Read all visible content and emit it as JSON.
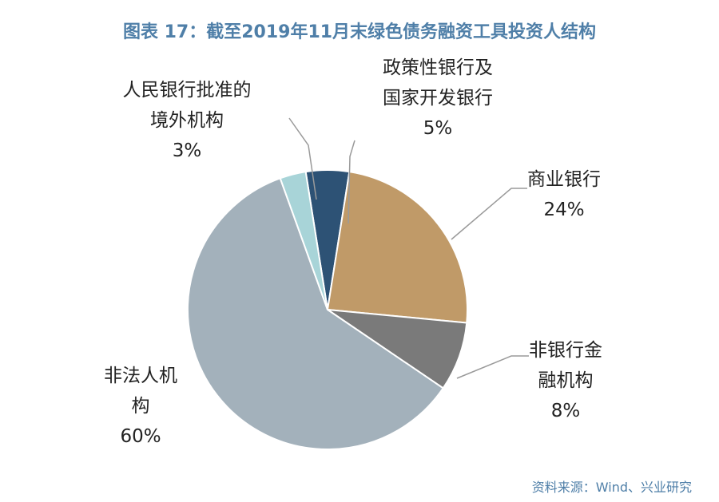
{
  "title": "图表 17：截至2019年11月末绿色债务融资工具投资人结构",
  "source": "资料来源：Wind、兴业研究",
  "chart_data": {
    "type": "pie",
    "start_angle_deg": -9,
    "direction": "clockwise",
    "slices": [
      {
        "label_lines": [
          "政策性银行及",
          "国家开发银行"
        ],
        "pct_label": "5%",
        "value": 5,
        "color": "#2d5275"
      },
      {
        "label_lines": [
          "商业银行"
        ],
        "pct_label": "24%",
        "value": 24,
        "color": "#c09a68"
      },
      {
        "label_lines": [
          "非银行金",
          "融机构"
        ],
        "pct_label": "8%",
        "value": 8,
        "color": "#7a7a7a"
      },
      {
        "label_lines": [
          "非法人机",
          "构"
        ],
        "pct_label": "60%",
        "value": 60,
        "color": "#a3b1bb"
      },
      {
        "label_lines": [
          "人民银行批准的",
          "境外机构"
        ],
        "pct_label": "3%",
        "value": 3,
        "color": "#a8d4d8"
      }
    ]
  }
}
